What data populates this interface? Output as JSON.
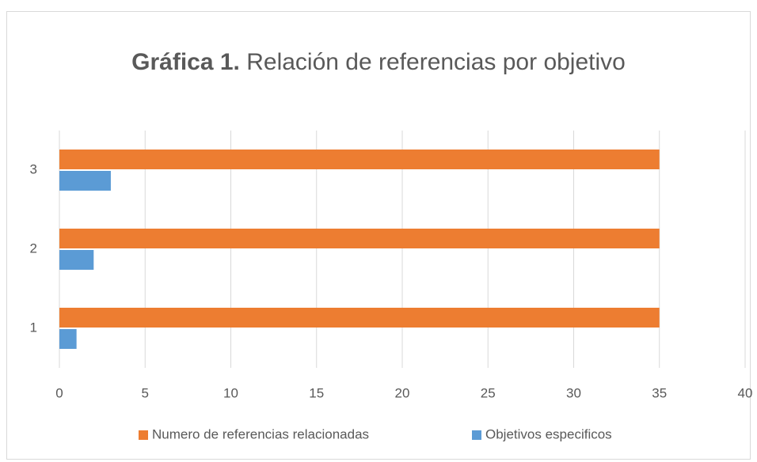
{
  "chart_data": {
    "type": "hbar",
    "title_bold": "Gráfica 1.",
    "title": "Relación de referencias por objetivo",
    "categories": [
      "1",
      "2",
      "3"
    ],
    "series": [
      {
        "name": "Numero de referencias relacionadas",
        "color": "#ed7d31",
        "values": [
          35,
          35,
          35
        ]
      },
      {
        "name": "Objetivos especificos",
        "color": "#5b9bd5",
        "values": [
          1,
          2,
          3
        ]
      }
    ],
    "xlim": [
      0,
      40
    ],
    "xticks": [
      0,
      5,
      10,
      15,
      20,
      25,
      30,
      35,
      40
    ],
    "grid": true,
    "legend": "bottom"
  }
}
